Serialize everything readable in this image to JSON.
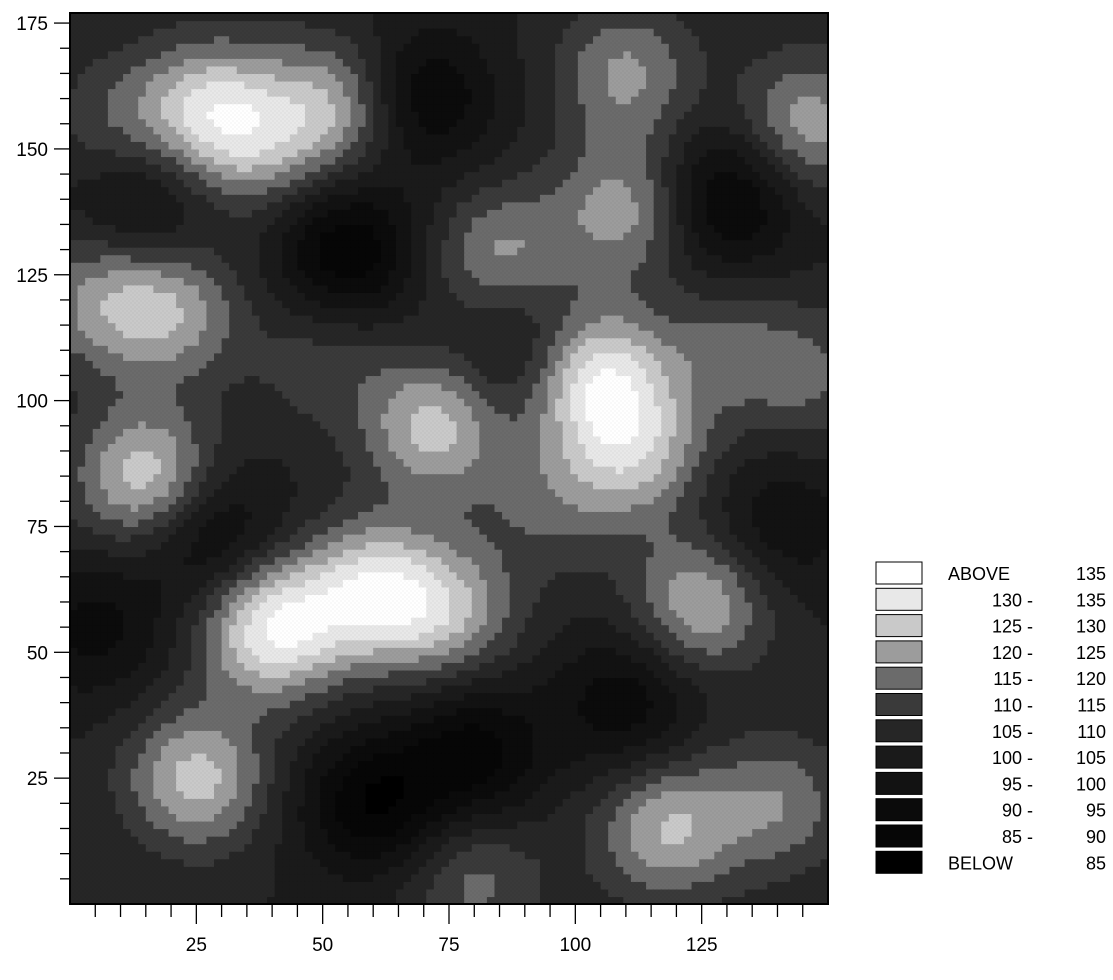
{
  "chart_data": {
    "type": "heatmap",
    "title": "",
    "xlabel": "",
    "ylabel": "",
    "xlim": [
      0,
      150
    ],
    "ylim": [
      0,
      177
    ],
    "x_ticks": [
      25,
      50,
      75,
      100,
      125
    ],
    "y_ticks": [
      25,
      50,
      75,
      100,
      125,
      150,
      175
    ],
    "grid": false,
    "legend_position": "bottom-right",
    "legend": [
      {
        "range_low": "ABOVE",
        "range_high": "135",
        "color": "#ffffff"
      },
      {
        "range_low": "130 -",
        "range_high": "135",
        "color": "#e8e8e8"
      },
      {
        "range_low": "125 -",
        "range_high": "130",
        "color": "#c9c9c9"
      },
      {
        "range_low": "120 -",
        "range_high": "125",
        "color": "#9c9c9c"
      },
      {
        "range_low": "115 -",
        "range_high": "120",
        "color": "#6b6b6b"
      },
      {
        "range_low": "110 -",
        "range_high": "115",
        "color": "#3a3a3a"
      },
      {
        "range_low": "105 -",
        "range_high": "110",
        "color": "#262626"
      },
      {
        "range_low": "100 -",
        "range_high": "105",
        "color": "#1a1a1a"
      },
      {
        "range_low": "95 -",
        "range_high": "100",
        "color": "#121212"
      },
      {
        "range_low": "90 -",
        "range_high": "95",
        "color": "#0b0b0b"
      },
      {
        "range_low": "85 -",
        "range_high": "90",
        "color": "#060606"
      },
      {
        "range_low": "BELOW",
        "range_high": "85",
        "color": "#000000"
      }
    ],
    "blobs": [
      {
        "x": 40,
        "y": 55,
        "v": 30
      },
      {
        "x": 15,
        "y": 85,
        "v": 24
      },
      {
        "x": 60,
        "y": 62,
        "v": 26
      },
      {
        "x": 75,
        "y": 58,
        "v": 18
      },
      {
        "x": 28,
        "y": 158,
        "v": 22
      },
      {
        "x": 52,
        "y": 158,
        "v": 20
      },
      {
        "x": 104,
        "y": 105,
        "v": 28
      },
      {
        "x": 112,
        "y": 90,
        "v": 20
      },
      {
        "x": 72,
        "y": 95,
        "v": 22
      },
      {
        "x": 85,
        "y": 129,
        "v": 16
      },
      {
        "x": 110,
        "y": 138,
        "v": 18
      },
      {
        "x": 110,
        "y": 165,
        "v": 16
      },
      {
        "x": 20,
        "y": 118,
        "v": 18
      },
      {
        "x": 25,
        "y": 25,
        "v": 22
      },
      {
        "x": 5,
        "y": 120,
        "v": 14
      },
      {
        "x": 95,
        "y": 80,
        "v": 10
      },
      {
        "x": 146,
        "y": 155,
        "v": 18
      },
      {
        "x": 125,
        "y": 60,
        "v": 20
      },
      {
        "x": 118,
        "y": 15,
        "v": 20
      },
      {
        "x": 140,
        "y": 20,
        "v": 14
      },
      {
        "x": 80,
        "y": 5,
        "v": 12
      },
      {
        "x": 130,
        "y": 110,
        "v": 10
      },
      {
        "x": 147,
        "y": 105,
        "v": 10
      },
      {
        "x": 36,
        "y": 150,
        "v": 12
      },
      {
        "x": 50,
        "y": 108,
        "v": 8
      },
      {
        "x": 10,
        "y": 155,
        "v": 10
      },
      {
        "x": 80,
        "y": 30,
        "v": -18
      },
      {
        "x": 60,
        "y": 20,
        "v": -20
      },
      {
        "x": 55,
        "y": 130,
        "v": -20
      },
      {
        "x": 130,
        "y": 140,
        "v": -18
      },
      {
        "x": 70,
        "y": 160,
        "v": -16
      },
      {
        "x": 5,
        "y": 55,
        "v": -12
      },
      {
        "x": 110,
        "y": 40,
        "v": -14
      },
      {
        "x": 90,
        "y": 110,
        "v": -10
      },
      {
        "x": 28,
        "y": 73,
        "v": -14
      },
      {
        "x": 15,
        "y": 140,
        "v": -12
      },
      {
        "x": 140,
        "y": 75,
        "v": -10
      }
    ]
  }
}
